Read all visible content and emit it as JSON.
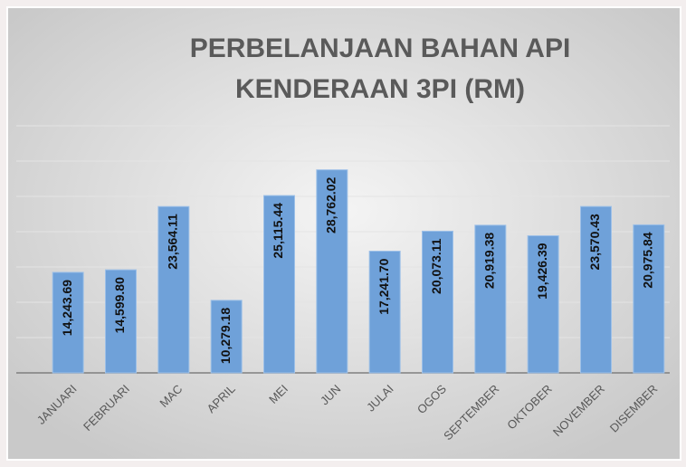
{
  "chart_data": {
    "type": "bar",
    "title": [
      "PERBELANJAAN BAHAN API",
      "KENDERAAN 3PI (RM)"
    ],
    "categories": [
      "JANUARI",
      "FEBRUARI",
      "MAC",
      "APRIL",
      "MEI",
      "JUN",
      "JULAI",
      "OGOS",
      "SEPTEMBER",
      "OKTOBER",
      "NOVEMBER",
      "DISEMBER"
    ],
    "values": [
      14243.69,
      14599.8,
      23564.11,
      10279.18,
      25115.44,
      28762.02,
      17241.7,
      20073.11,
      20919.38,
      19426.39,
      23570.43,
      20975.84
    ],
    "value_labels": [
      "14,243.69",
      "14,599.80",
      "23,564.11",
      "10,279.18",
      "25,115.44",
      "28,762.02",
      "17,241.70",
      "20,073.11",
      "20,919.38",
      "19,426.39",
      "23,570.43",
      "20,975.84"
    ],
    "color": "#6fa1d9",
    "ylim": [
      0,
      35000
    ],
    "yticks": [
      0,
      5000,
      10000,
      15000,
      20000,
      25000,
      30000,
      35000
    ],
    "grid": true
  }
}
